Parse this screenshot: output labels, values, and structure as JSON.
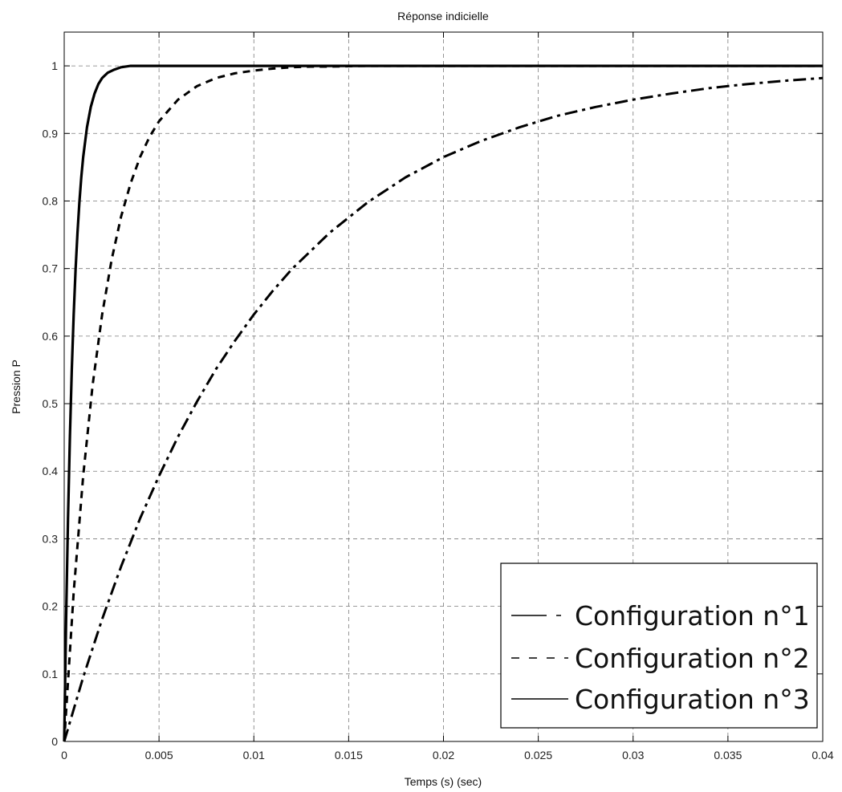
{
  "chart_data": {
    "type": "line",
    "title": "Réponse indicielle",
    "xlabel": "Temps (s) (sec)",
    "ylabel": "Pression P",
    "xlim": [
      0,
      0.04
    ],
    "ylim": [
      0,
      1.05
    ],
    "grid": true,
    "legend_position": "bottom-right",
    "x_ticks": [
      "0",
      "0.005",
      "0.01",
      "0.015",
      "0.02",
      "0.025",
      "0.03",
      "0.035",
      "0.04"
    ],
    "y_ticks": [
      "0",
      "0.1",
      "0.2",
      "0.3",
      "0.4",
      "0.5",
      "0.6",
      "0.7",
      "0.8",
      "0.9",
      "1"
    ],
    "series": [
      {
        "name": "Configuration n°1",
        "style": "dashdot",
        "x": [
          0,
          0.001,
          0.002,
          0.003,
          0.004,
          0.005,
          0.006,
          0.007,
          0.008,
          0.009,
          0.01,
          0.011,
          0.012,
          0.014,
          0.016,
          0.018,
          0.02,
          0.022,
          0.024,
          0.026,
          0.028,
          0.03,
          0.032,
          0.034,
          0.036,
          0.038,
          0.04
        ],
        "y": [
          0,
          0.095,
          0.181,
          0.259,
          0.33,
          0.393,
          0.451,
          0.503,
          0.551,
          0.593,
          0.632,
          0.667,
          0.699,
          0.753,
          0.798,
          0.835,
          0.865,
          0.889,
          0.909,
          0.926,
          0.939,
          0.95,
          0.959,
          0.967,
          0.973,
          0.978,
          0.982
        ]
      },
      {
        "name": "Configuration n°2",
        "style": "dashed",
        "x": [
          0,
          0.0005,
          0.001,
          0.0015,
          0.002,
          0.0025,
          0.003,
          0.0035,
          0.004,
          0.0045,
          0.005,
          0.006,
          0.007,
          0.008,
          0.009,
          0.01,
          0.011,
          0.012,
          0.013,
          0.014,
          0.016,
          0.04
        ],
        "y": [
          0,
          0.221,
          0.393,
          0.528,
          0.632,
          0.713,
          0.777,
          0.826,
          0.865,
          0.895,
          0.918,
          0.95,
          0.97,
          0.982,
          0.989,
          0.993,
          0.996,
          0.998,
          0.999,
          0.999,
          1,
          1
        ]
      },
      {
        "name": "Configuration n°3",
        "style": "solid",
        "x": [
          0,
          0.0001,
          0.0002,
          0.0003,
          0.0004,
          0.0005,
          0.0006,
          0.0007,
          0.0008,
          0.0009,
          0.001,
          0.0012,
          0.0014,
          0.0016,
          0.0018,
          0.002,
          0.0023,
          0.0026,
          0.003,
          0.0035,
          0.004,
          0.04
        ],
        "y": [
          0,
          0.181,
          0.33,
          0.451,
          0.551,
          0.632,
          0.699,
          0.753,
          0.798,
          0.835,
          0.865,
          0.909,
          0.939,
          0.959,
          0.973,
          0.982,
          0.99,
          0.994,
          0.998,
          1,
          1,
          1
        ]
      }
    ]
  }
}
